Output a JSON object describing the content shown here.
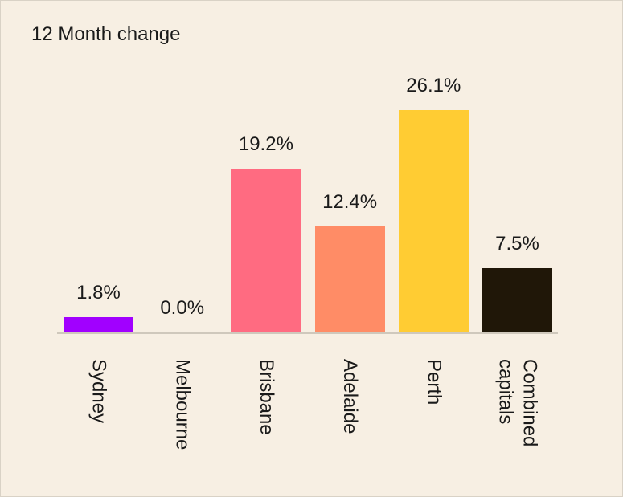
{
  "chart_data": {
    "type": "bar",
    "title": "12 Month change",
    "categories": [
      "Sydney",
      "Melbourne",
      "Brisbane",
      "Adelaide",
      "Perth",
      "Combined capitals"
    ],
    "values": [
      1.8,
      0.0,
      19.2,
      12.4,
      26.1,
      7.5
    ],
    "value_labels": [
      "1.8%",
      "0.0%",
      "19.2%",
      "12.4%",
      "26.1%",
      "7.5%"
    ],
    "colors": [
      "#a100ff",
      "#5a9bd5",
      "#ff6b81",
      "#ff8c66",
      "#ffcc33",
      "#201708"
    ]
  }
}
